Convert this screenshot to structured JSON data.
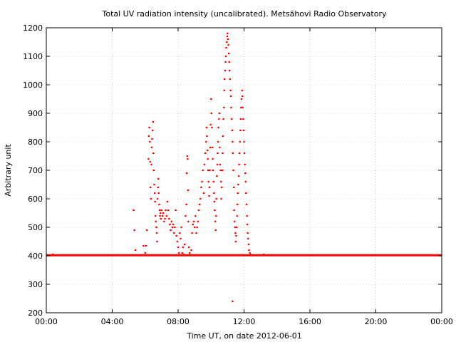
{
  "chart_data": {
    "type": "scatter",
    "title": "Total UV radiation intensity (uncalibrated). Metsähovi Radio Observatory",
    "xlabel": "Time UT, on date 2012-06-01",
    "ylabel": "Arbitrary unit",
    "xlim": [
      0,
      24
    ],
    "ylim": [
      200,
      1200
    ],
    "x_ticks": [
      {
        "value": 0,
        "label": "00:00"
      },
      {
        "value": 4,
        "label": "04:00"
      },
      {
        "value": 8,
        "label": "08:00"
      },
      {
        "value": 12,
        "label": "12:00"
      },
      {
        "value": 16,
        "label": "16:00"
      },
      {
        "value": 20,
        "label": "20:00"
      },
      {
        "value": 24,
        "label": "00:00"
      }
    ],
    "y_ticks": [
      {
        "value": 200,
        "label": "200"
      },
      {
        "value": 300,
        "label": "300"
      },
      {
        "value": 400,
        "label": "400"
      },
      {
        "value": 500,
        "label": "500"
      },
      {
        "value": 600,
        "label": "600"
      },
      {
        "value": 700,
        "label": "700"
      },
      {
        "value": 800,
        "label": "800"
      },
      {
        "value": 900,
        "label": "900"
      },
      {
        "value": 1000,
        "label": "1000"
      },
      {
        "value": 1100,
        "label": "1100"
      },
      {
        "value": 1200,
        "label": "1200"
      }
    ],
    "grid": true,
    "marker_color": "#ff0000",
    "baseline": {
      "value": 402,
      "from": 0,
      "to": 24
    },
    "points": [
      [
        5.3,
        560
      ],
      [
        5.35,
        490
      ],
      [
        5.4,
        420
      ],
      [
        5.5,
        402
      ],
      [
        5.9,
        435
      ],
      [
        6.0,
        410
      ],
      [
        6.05,
        435
      ],
      [
        6.1,
        490
      ],
      [
        6.15,
        402
      ],
      [
        6.2,
        740
      ],
      [
        6.22,
        820
      ],
      [
        6.25,
        850
      ],
      [
        6.28,
        800
      ],
      [
        6.3,
        730
      ],
      [
        6.32,
        640
      ],
      [
        6.35,
        600
      ],
      [
        6.38,
        720
      ],
      [
        6.4,
        780
      ],
      [
        6.42,
        810
      ],
      [
        6.45,
        840
      ],
      [
        6.48,
        870
      ],
      [
        6.5,
        760
      ],
      [
        6.52,
        700
      ],
      [
        6.55,
        650
      ],
      [
        6.58,
        620
      ],
      [
        6.6,
        590
      ],
      [
        6.62,
        540
      ],
      [
        6.65,
        520
      ],
      [
        6.68,
        500
      ],
      [
        6.7,
        480
      ],
      [
        6.72,
        450
      ],
      [
        6.75,
        600
      ],
      [
        6.78,
        640
      ],
      [
        6.8,
        670
      ],
      [
        6.82,
        620
      ],
      [
        6.85,
        580
      ],
      [
        6.88,
        560
      ],
      [
        6.9,
        540
      ],
      [
        6.93,
        550
      ],
      [
        6.95,
        530
      ],
      [
        7.0,
        560
      ],
      [
        7.05,
        540
      ],
      [
        7.1,
        550
      ],
      [
        7.15,
        520
      ],
      [
        7.2,
        530
      ],
      [
        7.25,
        560
      ],
      [
        7.3,
        540
      ],
      [
        7.35,
        590
      ],
      [
        7.4,
        560
      ],
      [
        7.45,
        530
      ],
      [
        7.5,
        510
      ],
      [
        7.55,
        490
      ],
      [
        7.6,
        520
      ],
      [
        7.65,
        500
      ],
      [
        7.7,
        510
      ],
      [
        7.75,
        480
      ],
      [
        7.8,
        500
      ],
      [
        7.85,
        560
      ],
      [
        7.9,
        470
      ],
      [
        7.95,
        450
      ],
      [
        8.0,
        430
      ],
      [
        8.05,
        410
      ],
      [
        8.1,
        480
      ],
      [
        8.15,
        460
      ],
      [
        8.2,
        500
      ],
      [
        8.25,
        410
      ],
      [
        8.3,
        430
      ],
      [
        8.35,
        405
      ],
      [
        8.4,
        440
      ],
      [
        8.45,
        540
      ],
      [
        8.5,
        580
      ],
      [
        8.52,
        690
      ],
      [
        8.55,
        750
      ],
      [
        8.58,
        740
      ],
      [
        8.6,
        630
      ],
      [
        8.62,
        520
      ],
      [
        8.65,
        430
      ],
      [
        8.7,
        410
      ],
      [
        8.75,
        402
      ],
      [
        8.8,
        420
      ],
      [
        8.85,
        480
      ],
      [
        8.9,
        510
      ],
      [
        8.95,
        520
      ],
      [
        9.0,
        500
      ],
      [
        9.05,
        540
      ],
      [
        9.1,
        480
      ],
      [
        9.15,
        500
      ],
      [
        9.2,
        520
      ],
      [
        9.25,
        560
      ],
      [
        9.3,
        580
      ],
      [
        9.35,
        600
      ],
      [
        9.4,
        640
      ],
      [
        9.45,
        660
      ],
      [
        9.5,
        700
      ],
      [
        9.55,
        620
      ],
      [
        9.6,
        720
      ],
      [
        9.65,
        760
      ],
      [
        9.7,
        800
      ],
      [
        9.72,
        850
      ],
      [
        9.75,
        820
      ],
      [
        9.78,
        770
      ],
      [
        9.8,
        740
      ],
      [
        9.82,
        700
      ],
      [
        9.85,
        660
      ],
      [
        9.88,
        610
      ],
      [
        9.9,
        640
      ],
      [
        9.92,
        700
      ],
      [
        9.95,
        780
      ],
      [
        9.98,
        860
      ],
      [
        10.0,
        950
      ],
      [
        10.02,
        900
      ],
      [
        10.05,
        850
      ],
      [
        10.08,
        780
      ],
      [
        10.1,
        740
      ],
      [
        10.12,
        700
      ],
      [
        10.15,
        660
      ],
      [
        10.18,
        620
      ],
      [
        10.2,
        590
      ],
      [
        10.22,
        560
      ],
      [
        10.25,
        520
      ],
      [
        10.28,
        490
      ],
      [
        10.3,
        540
      ],
      [
        10.32,
        600
      ],
      [
        10.35,
        680
      ],
      [
        10.38,
        720
      ],
      [
        10.4,
        760
      ],
      [
        10.42,
        800
      ],
      [
        10.45,
        850
      ],
      [
        10.48,
        880
      ],
      [
        10.5,
        900
      ],
      [
        10.52,
        780
      ],
      [
        10.55,
        720
      ],
      [
        10.58,
        700
      ],
      [
        10.6,
        660
      ],
      [
        10.62,
        600
      ],
      [
        10.65,
        640
      ],
      [
        10.68,
        700
      ],
      [
        10.7,
        760
      ],
      [
        10.72,
        820
      ],
      [
        10.75,
        880
      ],
      [
        10.78,
        920
      ],
      [
        10.8,
        980
      ],
      [
        10.82,
        1020
      ],
      [
        10.85,
        1050
      ],
      [
        10.88,
        1080
      ],
      [
        10.9,
        1100
      ],
      [
        10.92,
        1130
      ],
      [
        10.95,
        1150
      ],
      [
        10.98,
        1170
      ],
      [
        11.0,
        1180
      ],
      [
        11.02,
        1160
      ],
      [
        11.05,
        1140
      ],
      [
        11.08,
        1110
      ],
      [
        11.1,
        1080
      ],
      [
        11.12,
        1050
      ],
      [
        11.15,
        1020
      ],
      [
        11.18,
        980
      ],
      [
        11.2,
        960
      ],
      [
        11.22,
        920
      ],
      [
        11.25,
        880
      ],
      [
        11.28,
        840
      ],
      [
        11.3,
        800
      ],
      [
        11.32,
        760
      ],
      [
        11.35,
        700
      ],
      [
        11.38,
        640
      ],
      [
        11.4,
        560
      ],
      [
        11.42,
        520
      ],
      [
        11.45,
        500
      ],
      [
        11.48,
        480
      ],
      [
        11.5,
        450
      ],
      [
        11.52,
        470
      ],
      [
        11.55,
        500
      ],
      [
        11.58,
        540
      ],
      [
        11.6,
        580
      ],
      [
        11.62,
        620
      ],
      [
        11.65,
        650
      ],
      [
        11.68,
        680
      ],
      [
        11.7,
        720
      ],
      [
        11.72,
        760
      ],
      [
        11.75,
        800
      ],
      [
        11.78,
        840
      ],
      [
        11.8,
        880
      ],
      [
        11.82,
        920
      ],
      [
        11.85,
        950
      ],
      [
        11.88,
        980
      ],
      [
        11.9,
        960
      ],
      [
        11.92,
        920
      ],
      [
        11.95,
        880
      ],
      [
        11.98,
        840
      ],
      [
        12.0,
        800
      ],
      [
        12.02,
        760
      ],
      [
        12.05,
        720
      ],
      [
        12.08,
        690
      ],
      [
        12.1,
        660
      ],
      [
        12.12,
        620
      ],
      [
        12.15,
        580
      ],
      [
        12.18,
        540
      ],
      [
        12.2,
        510
      ],
      [
        12.22,
        480
      ],
      [
        12.25,
        460
      ],
      [
        12.28,
        440
      ],
      [
        12.3,
        420
      ],
      [
        12.35,
        410
      ],
      [
        12.4,
        405
      ],
      [
        12.5,
        402
      ],
      [
        13.2,
        405
      ],
      [
        11.3,
        240
      ],
      [
        0.4,
        405
      ]
    ]
  }
}
